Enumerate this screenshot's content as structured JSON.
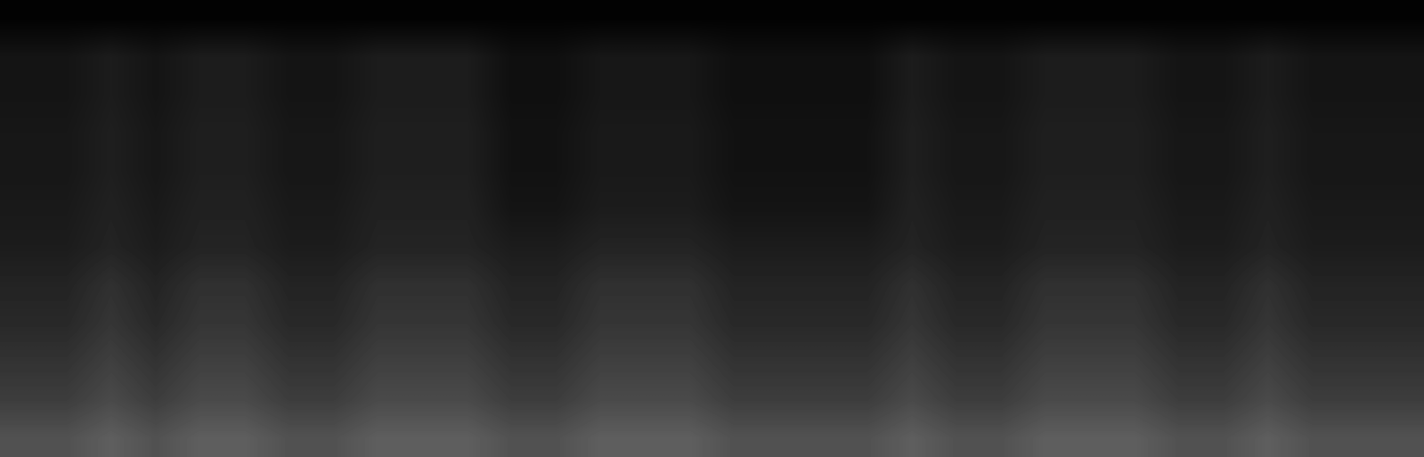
{
  "chart_data": {
    "type": "heatmap",
    "tick_labels": false,
    "color": "gray",
    "zlim": [
      0,
      100
    ],
    "cells": [
      [
        1,
        1,
        1,
        1,
        1,
        1,
        1,
        1,
        1,
        1,
        1,
        1,
        1,
        1,
        1,
        1,
        1,
        1,
        1,
        1,
        1,
        1,
        1,
        1,
        1,
        1,
        1,
        1,
        1,
        1,
        1,
        1
      ],
      [
        8,
        8,
        11,
        8,
        11,
        11,
        8,
        8,
        11,
        11,
        11,
        6,
        6,
        9,
        9,
        9,
        6,
        6,
        6,
        6,
        11,
        8,
        8,
        11,
        11,
        11,
        8,
        8,
        11,
        8,
        8,
        8
      ],
      [
        8,
        8,
        11,
        8,
        11,
        11,
        8,
        8,
        11,
        11,
        11,
        6,
        6,
        9,
        9,
        9,
        6,
        6,
        6,
        6,
        11,
        8,
        8,
        11,
        11,
        11,
        8,
        8,
        11,
        8,
        8,
        8
      ],
      [
        9,
        9,
        12,
        9,
        12,
        12,
        9,
        9,
        12,
        12,
        12,
        7,
        7,
        10,
        10,
        10,
        7,
        7,
        7,
        7,
        12,
        9,
        9,
        12,
        12,
        12,
        9,
        9,
        12,
        9,
        9,
        9
      ],
      [
        9,
        9,
        12,
        9,
        12,
        12,
        9,
        9,
        12,
        12,
        12,
        7,
        7,
        10,
        10,
        10,
        7,
        7,
        7,
        7,
        12,
        9,
        9,
        12,
        12,
        12,
        9,
        9,
        12,
        9,
        9,
        9
      ],
      [
        10,
        10,
        13,
        10,
        13,
        13,
        10,
        10,
        13,
        13,
        13,
        8,
        8,
        11,
        11,
        11,
        8,
        8,
        8,
        8,
        13,
        10,
        10,
        13,
        13,
        13,
        10,
        10,
        13,
        10,
        10,
        10
      ],
      [
        11,
        11,
        14,
        11,
        14,
        14,
        11,
        11,
        14,
        14,
        14,
        11,
        11,
        14,
        14,
        14,
        11,
        11,
        11,
        11,
        14,
        11,
        11,
        14,
        14,
        14,
        11,
        11,
        14,
        11,
        11,
        11
      ],
      [
        14,
        14,
        19,
        14,
        19,
        19,
        14,
        14,
        19,
        19,
        19,
        14,
        14,
        19,
        19,
        19,
        14,
        14,
        14,
        14,
        19,
        14,
        14,
        19,
        19,
        19,
        14,
        14,
        19,
        14,
        14,
        14
      ],
      [
        16,
        16,
        21,
        16,
        21,
        21,
        16,
        16,
        21,
        21,
        21,
        16,
        16,
        21,
        21,
        21,
        16,
        16,
        16,
        16,
        21,
        16,
        16,
        21,
        21,
        21,
        16,
        16,
        21,
        16,
        16,
        16
      ],
      [
        20,
        20,
        25,
        20,
        25,
        25,
        20,
        20,
        25,
        25,
        25,
        20,
        20,
        25,
        25,
        25,
        20,
        20,
        20,
        20,
        25,
        20,
        20,
        25,
        25,
        25,
        20,
        20,
        25,
        20,
        20,
        20
      ],
      [
        24,
        24,
        29,
        24,
        29,
        29,
        24,
        24,
        29,
        29,
        29,
        24,
        24,
        29,
        29,
        29,
        24,
        24,
        24,
        24,
        29,
        24,
        24,
        29,
        29,
        29,
        24,
        24,
        29,
        24,
        24,
        24
      ],
      [
        32,
        32,
        37,
        32,
        37,
        37,
        32,
        32,
        37,
        37,
        37,
        32,
        32,
        37,
        37,
        37,
        32,
        32,
        32,
        32,
        37,
        32,
        32,
        37,
        37,
        37,
        32,
        32,
        37,
        32,
        32,
        32
      ]
    ]
  }
}
